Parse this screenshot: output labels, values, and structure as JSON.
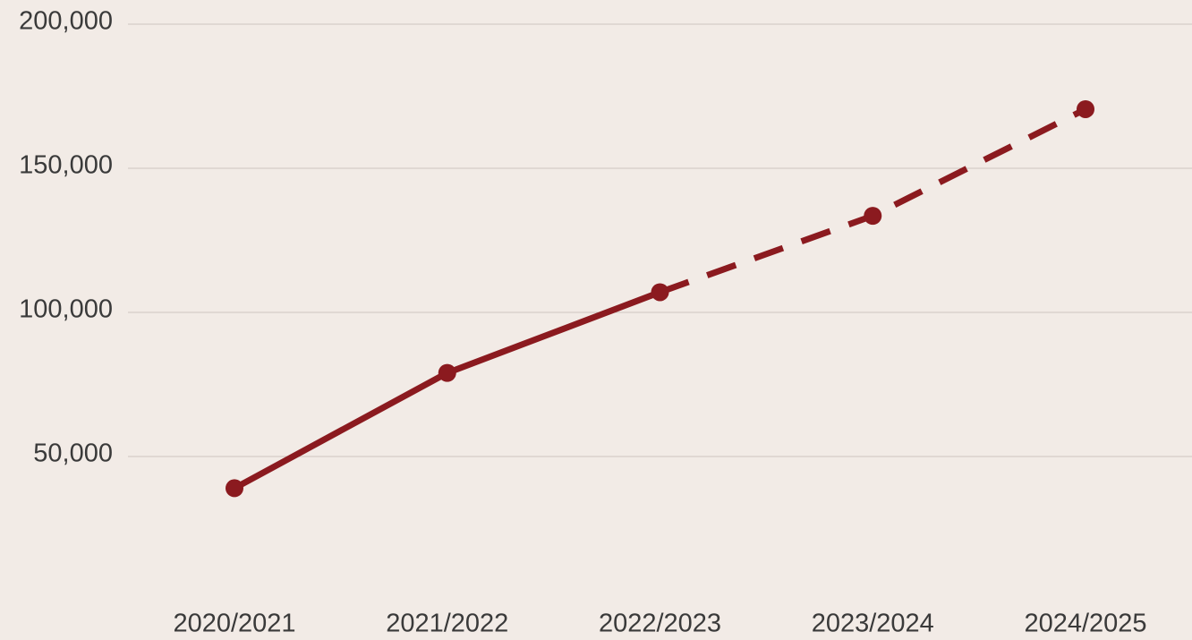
{
  "chart_data": {
    "type": "line",
    "categories": [
      "2020/2021",
      "2021/2022",
      "2022/2023",
      "2023/2024",
      "2024/2025"
    ],
    "values": [
      39000,
      79000,
      107000,
      133500,
      170500
    ],
    "color": "#8b1a1f",
    "dashed_from_index": 2,
    "ylim": [
      0,
      200000
    ],
    "yticks": [
      {
        "value": 50000,
        "label": "50,000"
      },
      {
        "value": 100000,
        "label": "100,000"
      },
      {
        "value": 150000,
        "label": "150,000"
      },
      {
        "value": 200000,
        "label": "200,000"
      }
    ],
    "grid": true
  }
}
